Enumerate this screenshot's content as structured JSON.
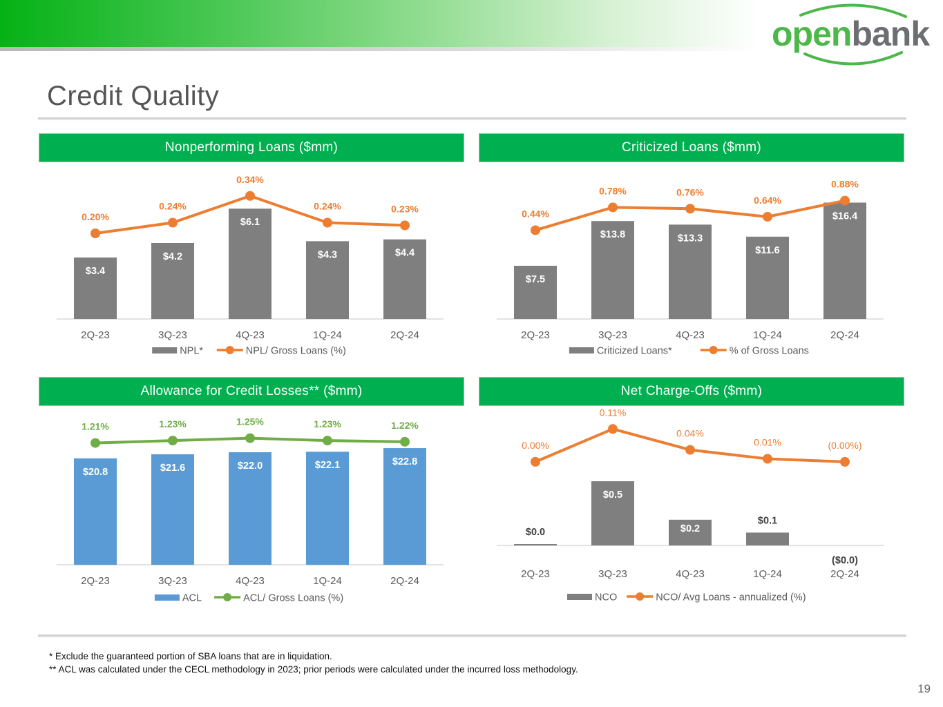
{
  "title": "Credit Quality",
  "logo_text": "openbank",
  "page_number": "19",
  "footnotes": [
    "* Exclude the guaranteed portion of SBA loans that are in liquidation.",
    "** ACL was calculated under the CECL methodology in 2023; prior periods were calculated under the incurred loss methodology."
  ],
  "colors": {
    "header_green": "#00b050",
    "bar_gray": "#7f7f7f",
    "bar_blue": "#5b9bd5",
    "line_orange": "#ed7d31",
    "line_green": "#70ad47"
  },
  "chart_data": [
    {
      "id": "npl",
      "type": "bar",
      "title": "Nonperforming Loans ($mm)",
      "categories": [
        "2Q-23",
        "3Q-23",
        "4Q-23",
        "1Q-24",
        "2Q-24"
      ],
      "series": [
        {
          "name": "NPL*",
          "kind": "bar",
          "values": [
            3.4,
            4.2,
            6.1,
            4.3,
            4.4
          ],
          "labels": [
            "$3.4",
            "$4.2",
            "$6.1",
            "$4.3",
            "$4.4"
          ],
          "color": "#7f7f7f"
        },
        {
          "name": "NPL/ Gross Loans (%)",
          "kind": "line",
          "values": [
            0.2,
            0.24,
            0.34,
            0.24,
            0.23
          ],
          "labels": [
            "0.20%",
            "0.24%",
            "0.34%",
            "0.24%",
            "0.23%"
          ],
          "color": "#ed7d31"
        }
      ],
      "bar_ylim": [
        0,
        7.1
      ],
      "line_ylim": [
        -0.12,
        0.36
      ],
      "bar_label_color": "#ffffff"
    },
    {
      "id": "criticized",
      "type": "bar",
      "title": "Criticized Loans ($mm)",
      "categories": [
        "2Q-23",
        "3Q-23",
        "4Q-23",
        "1Q-24",
        "2Q-24"
      ],
      "series": [
        {
          "name": "Criticized Loans*",
          "kind": "bar",
          "values": [
            7.5,
            13.8,
            13.3,
            11.6,
            16.4
          ],
          "labels": [
            "$7.5",
            "$13.8",
            "$13.3",
            "$11.6",
            "$16.4"
          ],
          "color": "#7f7f7f"
        },
        {
          "name": "% of Gross Loans",
          "kind": "line",
          "values": [
            0.44,
            0.78,
            0.76,
            0.64,
            0.88
          ],
          "labels": [
            "0.44%",
            "0.78%",
            "0.76%",
            "0.64%",
            "0.88%"
          ],
          "color": "#ed7d31"
        }
      ],
      "bar_ylim": [
        0,
        18.1
      ],
      "line_ylim": [
        -0.88,
        1.03
      ],
      "bar_label_color": "#ffffff"
    },
    {
      "id": "acl",
      "type": "bar",
      "title": "Allowance for Credit Losses** ($mm)",
      "categories": [
        "2Q-23",
        "3Q-23",
        "4Q-23",
        "1Q-24",
        "2Q-24"
      ],
      "series": [
        {
          "name": "ACL",
          "kind": "bar",
          "values": [
            20.8,
            21.6,
            22.0,
            22.1,
            22.8
          ],
          "labels": [
            "$20.8",
            "$21.6",
            "$22.0",
            "$22.1",
            "$22.8"
          ],
          "color": "#5b9bd5"
        },
        {
          "name": "ACL/ Gross Loans (%)",
          "kind": "line",
          "values": [
            1.21,
            1.23,
            1.25,
            1.23,
            1.22
          ],
          "labels": [
            "1.21%",
            "1.23%",
            "1.25%",
            "1.23%",
            "1.22%"
          ],
          "color": "#70ad47"
        }
      ],
      "bar_ylim": [
        0,
        25.1
      ],
      "line_ylim": [
        0.2,
        1.265
      ],
      "bar_label_color": "#ffffff"
    },
    {
      "id": "nco",
      "type": "bar",
      "title": "Net Charge-Offs ($mm)",
      "categories": [
        "2Q-23",
        "3Q-23",
        "4Q-23",
        "1Q-24",
        "2Q-24"
      ],
      "series": [
        {
          "name": "NCO",
          "kind": "bar",
          "values": [
            0.0,
            0.5,
            0.2,
            0.1,
            0.0
          ],
          "labels": [
            "$0.0",
            "$0.5",
            "$0.2",
            "$0.1",
            "($0.0)"
          ],
          "color": "#7f7f7f"
        },
        {
          "name": "NCO/ Avg Loans - annualized (%)",
          "kind": "line",
          "values": [
            0.0,
            0.11,
            0.04,
            0.01,
            0.0
          ],
          "labels": [
            "0.00%",
            "0.11%",
            "0.04%",
            "0.01%",
            "(0.00%)"
          ],
          "color": "#ed7d31"
        }
      ],
      "bar_ylim": [
        0,
        1.0
      ],
      "line_ylim": [
        -0.28,
        0.15
      ],
      "bar_label_color": "#ffffff",
      "bar_label_outside_color": "#404040",
      "line_label_color": "#ed7d31"
    }
  ]
}
